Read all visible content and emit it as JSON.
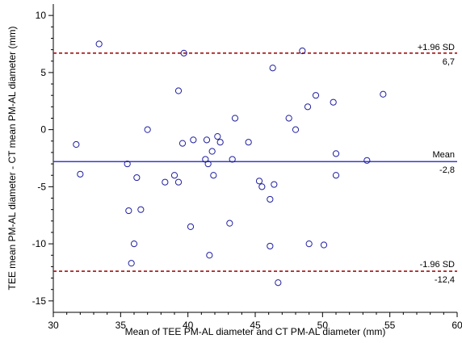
{
  "chart_data": {
    "type": "scatter",
    "title": "",
    "xlabel": "Mean of TEE PM-AL diameter and CT PM-AL diameter (mm)",
    "ylabel": "TEE mean PM-AL diameter - CT mean PM-AL diameter (mm)",
    "xlim": [
      30,
      60
    ],
    "ylim": [
      -16,
      11
    ],
    "x_ticks": [
      "30",
      "35",
      "40",
      "45",
      "50",
      "55",
      "60"
    ],
    "y_ticks": [
      "10",
      "5",
      "0",
      "-5",
      "-10",
      "-15"
    ],
    "grid": false,
    "legend": "none",
    "marker_color": "#1f1fa0",
    "mean_line": {
      "label": "Mean",
      "value_label": "-2,8",
      "value": -2.8,
      "color": "#3a3ad0"
    },
    "upper_limit": {
      "label": "+1.96 SD",
      "value_label": "6,7",
      "value": 6.7,
      "color": "#a01010"
    },
    "lower_limit": {
      "label": "-1.96 SD",
      "value_label": "-12,4",
      "value": -12.4,
      "color": "#a01010"
    },
    "points": [
      {
        "x": 31.7,
        "y": -1.3
      },
      {
        "x": 32.0,
        "y": -3.9
      },
      {
        "x": 33.4,
        "y": 7.5
      },
      {
        "x": 35.5,
        "y": -3.0
      },
      {
        "x": 35.6,
        "y": -7.1
      },
      {
        "x": 35.8,
        "y": -11.7
      },
      {
        "x": 36.0,
        "y": -10.0
      },
      {
        "x": 36.2,
        "y": -4.2
      },
      {
        "x": 36.5,
        "y": -7.0
      },
      {
        "x": 37.0,
        "y": 0.0
      },
      {
        "x": 38.3,
        "y": -4.6
      },
      {
        "x": 39.0,
        "y": -4.0
      },
      {
        "x": 39.3,
        "y": 3.4
      },
      {
        "x": 39.3,
        "y": -4.6
      },
      {
        "x": 39.6,
        "y": -1.2
      },
      {
        "x": 39.7,
        "y": 6.7
      },
      {
        "x": 40.2,
        "y": -8.5
      },
      {
        "x": 40.4,
        "y": -0.9
      },
      {
        "x": 41.3,
        "y": -2.6
      },
      {
        "x": 41.4,
        "y": -0.9
      },
      {
        "x": 41.5,
        "y": -3.0
      },
      {
        "x": 41.6,
        "y": -11.0
      },
      {
        "x": 41.8,
        "y": -1.9
      },
      {
        "x": 41.9,
        "y": -4.0
      },
      {
        "x": 42.2,
        "y": -0.6
      },
      {
        "x": 42.4,
        "y": -1.1
      },
      {
        "x": 43.1,
        "y": -8.2
      },
      {
        "x": 43.3,
        "y": -2.6
      },
      {
        "x": 43.5,
        "y": 1.0
      },
      {
        "x": 44.5,
        "y": -1.1
      },
      {
        "x": 45.3,
        "y": -4.5
      },
      {
        "x": 45.5,
        "y": -5.0
      },
      {
        "x": 46.1,
        "y": -6.1
      },
      {
        "x": 46.1,
        "y": -10.2
      },
      {
        "x": 46.3,
        "y": 5.4
      },
      {
        "x": 46.4,
        "y": -4.8
      },
      {
        "x": 46.7,
        "y": -13.4
      },
      {
        "x": 47.5,
        "y": 1.0
      },
      {
        "x": 48.0,
        "y": 0.0
      },
      {
        "x": 48.5,
        "y": 6.9
      },
      {
        "x": 48.9,
        "y": 2.0
      },
      {
        "x": 49.0,
        "y": -10.0
      },
      {
        "x": 49.5,
        "y": 3.0
      },
      {
        "x": 50.1,
        "y": -10.1
      },
      {
        "x": 50.8,
        "y": 2.4
      },
      {
        "x": 51.0,
        "y": -2.1
      },
      {
        "x": 51.0,
        "y": -4.0
      },
      {
        "x": 53.3,
        "y": -2.7
      },
      {
        "x": 54.5,
        "y": 3.1
      }
    ]
  }
}
